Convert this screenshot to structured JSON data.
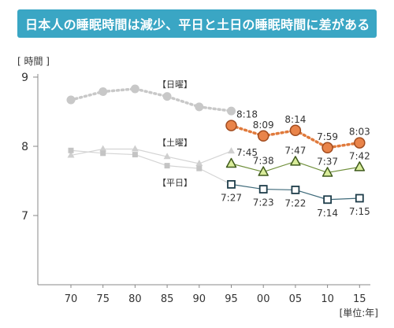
{
  "title": "日本人の睡眠時間は減少、平日と土日の睡眠時間に差がある",
  "chart_data": {
    "type": "line",
    "ylabel": "[ 時間 ]",
    "unit_note": "[単位:年]",
    "ylim": [
      6,
      9
    ],
    "y_ticks": [
      7,
      8,
      9
    ],
    "categories": [
      "70",
      "75",
      "80",
      "85",
      "90",
      "95",
      "00",
      "05",
      "10",
      "15"
    ],
    "series": [
      {
        "name": "【日曜】",
        "color": "#c8c8c8",
        "values": [
          8.67,
          8.79,
          8.83,
          8.72,
          8.57,
          8.51,
          null,
          null,
          null,
          null
        ]
      },
      {
        "name": "【日曜】",
        "color": "#e07a3c",
        "values": [
          null,
          null,
          null,
          null,
          null,
          8.3,
          8.15,
          8.23,
          7.98,
          8.05
        ],
        "labels": [
          null,
          null,
          null,
          null,
          null,
          "8:18",
          "8:09",
          "8:14",
          "7:59",
          "8:03"
        ]
      },
      {
        "name": "【土曜】",
        "color": "#c8c8c8",
        "values": [
          7.87,
          7.96,
          7.96,
          7.85,
          7.75,
          7.93,
          null,
          null,
          null,
          null
        ]
      },
      {
        "name": "【土曜】",
        "color": "#7a9e3c",
        "values": [
          null,
          null,
          null,
          null,
          null,
          7.75,
          7.63,
          7.78,
          7.62,
          7.7
        ],
        "labels": [
          null,
          null,
          null,
          null,
          null,
          "7:45",
          "7:38",
          "7:47",
          "7:37",
          "7:42"
        ]
      },
      {
        "name": "【平日】",
        "color": "#c8c8c8",
        "values": [
          7.94,
          7.9,
          7.88,
          7.72,
          7.68,
          7.45,
          null,
          null,
          null,
          null
        ]
      },
      {
        "name": "【平日】",
        "color": "#3e6a7a",
        "values": [
          null,
          null,
          null,
          null,
          null,
          7.45,
          7.38,
          7.37,
          7.23,
          7.25
        ],
        "labels": [
          null,
          null,
          null,
          null,
          null,
          "7:27",
          "7:23",
          "7:22",
          "7:14",
          "7:15"
        ]
      }
    ]
  }
}
